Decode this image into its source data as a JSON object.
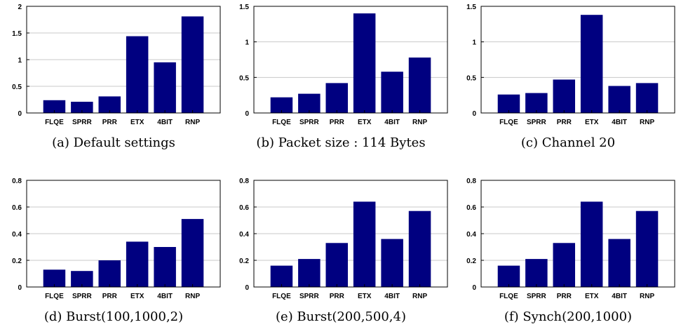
{
  "figure": {
    "bar_color": "#000080",
    "grid_color": "#c8c8c8"
  },
  "chart_data": [
    {
      "type": "bar",
      "caption": "(a) Default settings",
      "categories": [
        "FLQE",
        "SPRR",
        "PRR",
        "ETX",
        "4BIT",
        "RNP"
      ],
      "values": [
        0.24,
        0.21,
        0.31,
        1.44,
        0.95,
        1.81
      ],
      "ylim": [
        0,
        2
      ],
      "yticks": [
        0,
        0.5,
        1,
        1.5,
        2
      ],
      "ytick_labels": [
        "0",
        "0.5",
        "1",
        "1.5",
        "2"
      ],
      "grid": true
    },
    {
      "type": "bar",
      "caption": "(b) Packet size : 114 Bytes",
      "categories": [
        "FLQE",
        "SPRR",
        "PRR",
        "ETX",
        "4BIT",
        "RNP"
      ],
      "values": [
        0.22,
        0.27,
        0.42,
        1.4,
        0.58,
        0.78
      ],
      "ylim": [
        0,
        1.5
      ],
      "yticks": [
        0,
        0.5,
        1,
        1.5
      ],
      "ytick_labels": [
        "0",
        "0.5",
        "1",
        "1.5"
      ],
      "grid": true
    },
    {
      "type": "bar",
      "caption": "(c) Channel 20",
      "categories": [
        "FLQE",
        "SPRR",
        "PRR",
        "ETX",
        "4BIT",
        "RNP"
      ],
      "values": [
        0.26,
        0.28,
        0.47,
        1.38,
        0.38,
        0.42
      ],
      "ylim": [
        0,
        1.5
      ],
      "yticks": [
        0,
        0.5,
        1,
        1.5
      ],
      "ytick_labels": [
        "0",
        "0.5",
        "1",
        "1.5"
      ],
      "grid": true
    },
    {
      "type": "bar",
      "caption": "(d) Burst(100,1000,2)",
      "categories": [
        "FLQE",
        "SPRR",
        "PRR",
        "ETX",
        "4BIT",
        "RNP"
      ],
      "values": [
        0.13,
        0.12,
        0.2,
        0.34,
        0.3,
        0.51
      ],
      "ylim": [
        0,
        0.8
      ],
      "yticks": [
        0,
        0.2,
        0.4,
        0.6,
        0.8
      ],
      "ytick_labels": [
        "0",
        "0.2",
        "0.4",
        "0.6",
        "0.8"
      ],
      "grid": true
    },
    {
      "type": "bar",
      "caption": "(e) Burst(200,500,4)",
      "categories": [
        "FLQE",
        "SPRR",
        "PRR",
        "ETX",
        "4BIT",
        "RNP"
      ],
      "values": [
        0.16,
        0.21,
        0.33,
        0.64,
        0.36,
        0.57
      ],
      "ylim": [
        0,
        0.8
      ],
      "yticks": [
        0,
        0.2,
        0.4,
        0.6,
        0.8
      ],
      "ytick_labels": [
        "0",
        "0.2",
        "0.4",
        "0.6",
        "0.8"
      ],
      "grid": true
    },
    {
      "type": "bar",
      "caption": "(f) Synch(200,1000)",
      "categories": [
        "FLQE",
        "SPRR",
        "PRR",
        "ETX",
        "4BIT",
        "RNP"
      ],
      "values": [
        0.16,
        0.21,
        0.33,
        0.64,
        0.36,
        0.57
      ],
      "ylim": [
        0,
        0.8
      ],
      "yticks": [
        0,
        0.2,
        0.4,
        0.6,
        0.8
      ],
      "ytick_labels": [
        "0",
        "0.2",
        "0.4",
        "0.6",
        "0.8"
      ],
      "grid": true
    }
  ]
}
